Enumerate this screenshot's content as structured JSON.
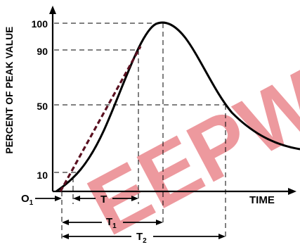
{
  "diagram": {
    "y_axis_title": "PERCENT OF PEAK VALUE",
    "y_ticks": [
      "100",
      "90",
      "50",
      "10"
    ],
    "x_axis_label": "TIME",
    "origin_label": "O",
    "origin_subscript": "1",
    "intervals": [
      {
        "label": "T",
        "subscript": ""
      },
      {
        "label": "T",
        "subscript": "1"
      },
      {
        "label": "T",
        "subscript": "2"
      }
    ],
    "watermark": "EEPW",
    "colors": {
      "curve": "#000000",
      "front_line": "#5a1020",
      "watermark": "#e8777e"
    }
  }
}
